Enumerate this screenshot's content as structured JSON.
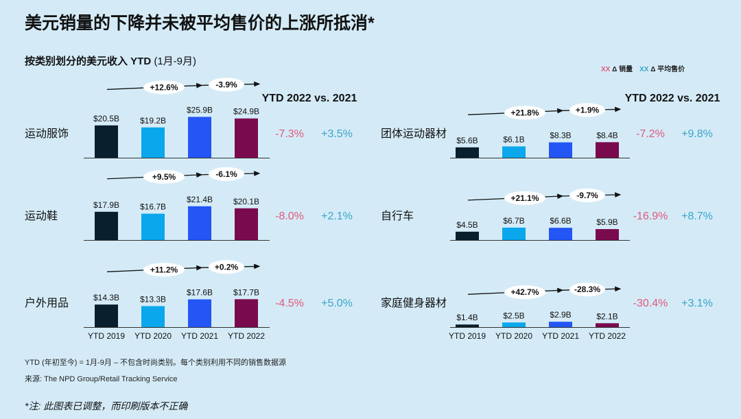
{
  "title": "美元销量的下降并未被平均售价的上涨所抵消*",
  "subtitle_main": "按类别划分的美元收入 YTD",
  "subtitle_paren": "(1月-9月)",
  "legend": {
    "marker": "XX",
    "volume": "Δ 销量",
    "asp": "Δ 平均售价"
  },
  "colors": {
    "ytd2019": "#0a1f2e",
    "ytd2020": "#0aa7ec",
    "ytd2021": "#2356f5",
    "ytd2022": "#7a0a4e",
    "volume_change": "#e0587a",
    "asp_change": "#3aa3c9"
  },
  "footnotes": {
    "line1": "YTD (年初至今) = 1月-9月 – 不包含时尚类别。每个类别利用不同的销售数据源",
    "line2": "来源: The NPD Group/Retail Tracking Service",
    "note": "*注: 此图表已调整，而印刷版本不正确"
  },
  "chart_data": {
    "type": "bar",
    "categories": [
      "YTD 2019",
      "YTD 2020",
      "YTD 2021",
      "YTD 2022"
    ],
    "comparison_header": "YTD 2022 vs. 2021",
    "unit": "$B",
    "panels": [
      {
        "name": "运动服饰",
        "values": [
          20.5,
          19.2,
          25.9,
          24.9
        ],
        "labels": [
          "$20.5B",
          "$19.2B",
          "$25.9B",
          "$24.9B"
        ],
        "change_19_21": "+12.6%",
        "change_21_22": "-3.9%",
        "volume_change": "-7.3%",
        "asp_change": "+3.5%"
      },
      {
        "name": "运动鞋",
        "values": [
          17.9,
          16.7,
          21.4,
          20.1
        ],
        "labels": [
          "$17.9B",
          "$16.7B",
          "$21.4B",
          "$20.1B"
        ],
        "change_19_21": "+9.5%",
        "change_21_22": "-6.1%",
        "volume_change": "-8.0%",
        "asp_change": "+2.1%"
      },
      {
        "name": "户外用品",
        "values": [
          14.3,
          13.3,
          17.6,
          17.7
        ],
        "labels": [
          "$14.3B",
          "$13.3B",
          "$17.6B",
          "$17.7B"
        ],
        "change_19_21": "+11.2%",
        "change_21_22": "+0.2%",
        "volume_change": "-4.5%",
        "asp_change": "+5.0%"
      },
      {
        "name": "团体运动器材",
        "values": [
          5.6,
          6.1,
          8.3,
          8.4
        ],
        "labels": [
          "$5.6B",
          "$6.1B",
          "$8.3B",
          "$8.4B"
        ],
        "change_19_21": "+21.8%",
        "change_21_22": "+1.9%",
        "volume_change": "-7.2%",
        "asp_change": "+9.8%"
      },
      {
        "name": "自行车",
        "values": [
          4.5,
          6.7,
          6.6,
          5.9
        ],
        "labels": [
          "$4.5B",
          "$6.7B",
          "$6.6B",
          "$5.9B"
        ],
        "change_19_21": "+21.1%",
        "change_21_22": "-9.7%",
        "volume_change": "-16.9%",
        "asp_change": "+8.7%"
      },
      {
        "name": "家庭健身器材",
        "values": [
          1.4,
          2.5,
          2.9,
          2.1
        ],
        "labels": [
          "$1.4B",
          "$2.5B",
          "$2.9B",
          "$2.1B"
        ],
        "change_19_21": "+42.7%",
        "change_21_22": "-28.3%",
        "volume_change": "-30.4%",
        "asp_change": "+3.1%"
      }
    ]
  }
}
